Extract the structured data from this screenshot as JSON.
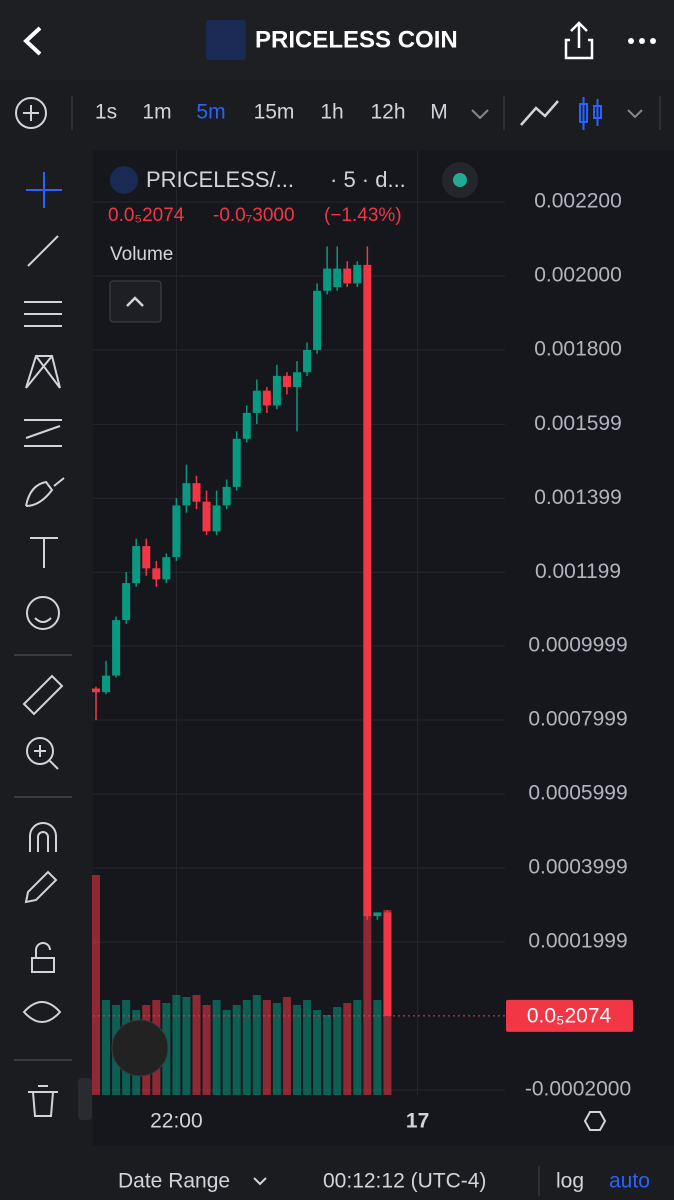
{
  "header": {
    "title": "PRICELESS COIN"
  },
  "toolbar": {
    "intervals": [
      "1s",
      "1m",
      "5m",
      "15m",
      "1h",
      "12h",
      "M"
    ],
    "active_index": 2,
    "active_color": "#2962ff"
  },
  "legend": {
    "symbol": "PRICELESS/...",
    "interval": "· 5 · d...",
    "price": "0.0₅2074",
    "change": "-0.0₇3000",
    "change_pct": "(−1.43%)",
    "volume_label": "Volume"
  },
  "chart": {
    "type": "candlestick",
    "up_color": "#089981",
    "down_color": "#f23645",
    "ylim": [
      -0.0002135,
      0.0023405
    ],
    "yticks": [
      {
        "value": 0.0022,
        "label": "0.002200"
      },
      {
        "value": 0.002,
        "label": "0.002000"
      },
      {
        "value": 0.0018,
        "label": "0.001800"
      },
      {
        "value": 0.001599,
        "label": "0.001599"
      },
      {
        "value": 0.001399,
        "label": "0.001399"
      },
      {
        "value": 0.001199,
        "label": "0.001199"
      },
      {
        "value": 0.0009999,
        "label": "0.0009999"
      },
      {
        "value": 0.0007999,
        "label": "0.0007999"
      },
      {
        "value": 0.0005999,
        "label": "0.0005999"
      },
      {
        "value": 0.0003999,
        "label": "0.0003999"
      },
      {
        "value": 0.0001999,
        "label": "0.0001999"
      },
      {
        "value": -0.0002,
        "label": "-0.0002000"
      }
    ],
    "xticks": [
      {
        "value": 8,
        "label": "22:00"
      },
      {
        "value": 32,
        "label": "17"
      }
    ],
    "candles": [
      {
        "open": 0.000885,
        "high": 0.00089,
        "low": 0.0008,
        "close": 0.000875
      },
      {
        "open": 0.000875,
        "high": 0.00096,
        "low": 0.00087,
        "close": 0.00092
      },
      {
        "open": 0.00092,
        "high": 0.00108,
        "low": 0.000915,
        "close": 0.00107
      },
      {
        "open": 0.00107,
        "high": 0.0012,
        "low": 0.00106,
        "close": 0.00117
      },
      {
        "open": 0.00117,
        "high": 0.00129,
        "low": 0.00116,
        "close": 0.00127
      },
      {
        "open": 0.00127,
        "high": 0.00129,
        "low": 0.00119,
        "close": 0.00121
      },
      {
        "open": 0.00121,
        "high": 0.00123,
        "low": 0.00116,
        "close": 0.00118
      },
      {
        "open": 0.00118,
        "high": 0.00125,
        "low": 0.00117,
        "close": 0.00124
      },
      {
        "open": 0.00124,
        "high": 0.0014,
        "low": 0.00123,
        "close": 0.00138
      },
      {
        "open": 0.00138,
        "high": 0.00149,
        "low": 0.00136,
        "close": 0.00144
      },
      {
        "open": 0.00144,
        "high": 0.00146,
        "low": 0.00137,
        "close": 0.00139
      },
      {
        "open": 0.00139,
        "high": 0.00142,
        "low": 0.0013,
        "close": 0.00131
      },
      {
        "open": 0.00131,
        "high": 0.00142,
        "low": 0.0013,
        "close": 0.00138
      },
      {
        "open": 0.00138,
        "high": 0.00145,
        "low": 0.00137,
        "close": 0.00143
      },
      {
        "open": 0.00143,
        "high": 0.00158,
        "low": 0.00142,
        "close": 0.00156
      },
      {
        "open": 0.00156,
        "high": 0.00165,
        "low": 0.00155,
        "close": 0.00163
      },
      {
        "open": 0.00163,
        "high": 0.00172,
        "low": 0.0016,
        "close": 0.00169
      },
      {
        "open": 0.00169,
        "high": 0.0017,
        "low": 0.00163,
        "close": 0.00165
      },
      {
        "open": 0.00165,
        "high": 0.00176,
        "low": 0.00164,
        "close": 0.00173
      },
      {
        "open": 0.00173,
        "high": 0.00174,
        "low": 0.00168,
        "close": 0.0017
      },
      {
        "open": 0.0017,
        "high": 0.00177,
        "low": 0.00158,
        "close": 0.00174
      },
      {
        "open": 0.00174,
        "high": 0.00182,
        "low": 0.00173,
        "close": 0.0018
      },
      {
        "open": 0.0018,
        "high": 0.00198,
        "low": 0.00179,
        "close": 0.00196
      },
      {
        "open": 0.00196,
        "high": 0.00208,
        "low": 0.00195,
        "close": 0.00202
      },
      {
        "open": 0.00197,
        "high": 0.00208,
        "low": 0.00196,
        "close": 0.00202
      },
      {
        "open": 0.00202,
        "high": 0.00204,
        "low": 0.00197,
        "close": 0.00198
      },
      {
        "open": 0.00198,
        "high": 0.00204,
        "low": 0.00197,
        "close": 0.00203
      },
      {
        "open": 0.00203,
        "high": 0.00208,
        "low": 0.00026,
        "close": 0.00027
      },
      {
        "open": 0.00027,
        "high": 0.00028,
        "low": 0.00026,
        "close": 0.00028
      },
      {
        "open": 0.00028,
        "high": 0.000285,
        "low": 0.0,
        "close": 2e-07
      }
    ],
    "volume_lim": [
      0,
      300
    ],
    "volume": [
      220,
      95,
      90,
      95,
      85,
      90,
      95,
      92,
      100,
      98,
      100,
      90,
      95,
      85,
      90,
      95,
      100,
      95,
      92,
      98,
      90,
      95,
      85,
      80,
      88,
      92,
      95,
      180,
      95,
      185
    ],
    "price_line": {
      "value": 2.074e-07,
      "label": "0.0₅2074"
    }
  },
  "footer": {
    "date_range": "Date Range",
    "time": "00:12:12 (UTC-4)",
    "log": "log",
    "auto": "auto"
  }
}
